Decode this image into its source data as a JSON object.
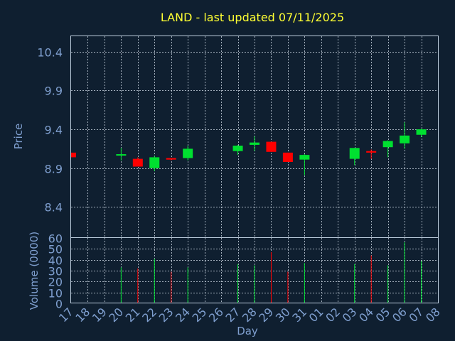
{
  "chart_data": {
    "type": "candlestick",
    "title": "LAND - last updated 07/11/2025",
    "xlabel": "Day",
    "price_panel": {
      "ylabel": "Price",
      "ylim": [
        8.0,
        10.6
      ],
      "yticks": [
        "8.4",
        "8.9",
        "9.4",
        "9.9",
        "10.4"
      ]
    },
    "volume_panel": {
      "ylabel": "Volume (0000)",
      "ylim": [
        0,
        60
      ],
      "yticks": [
        "0",
        "10",
        "20",
        "30",
        "40",
        "50",
        "60"
      ]
    },
    "x_tick_labels": [
      "17",
      "18",
      "19",
      "20",
      "21",
      "22",
      "23",
      "24",
      "25",
      "26",
      "27",
      "28",
      "29",
      "30",
      "31",
      "01",
      "02",
      "03",
      "04",
      "05",
      "06",
      "07",
      "08"
    ],
    "grid": true,
    "colors": {
      "background": "#0f1f30",
      "title": "#ffff33",
      "axis": "#7f9fcf",
      "up": "#00e030",
      "down": "#ff0000",
      "grid": "#c8d4e0"
    },
    "candles": [
      {
        "day": "17",
        "open": 9.1,
        "high": 9.1,
        "low": 9.04,
        "close": 9.04
      },
      {
        "day": "20",
        "open": 9.08,
        "high": 9.16,
        "low": 9.0,
        "close": 9.08,
        "volume": 33
      },
      {
        "day": "21",
        "open": 9.02,
        "high": 9.04,
        "low": 8.92,
        "close": 8.92,
        "volume": 32
      },
      {
        "day": "22",
        "open": 8.9,
        "high": 9.06,
        "low": 8.86,
        "close": 9.04,
        "volume": 41
      },
      {
        "day": "23",
        "open": 9.03,
        "high": 9.03,
        "low": 9.0,
        "close": 9.01,
        "volume": 29
      },
      {
        "day": "24",
        "open": 9.03,
        "high": 9.19,
        "low": 9.0,
        "close": 9.15,
        "volume": 33
      },
      {
        "day": "27",
        "open": 9.12,
        "high": 9.2,
        "low": 9.07,
        "close": 9.19,
        "volume": 36
      },
      {
        "day": "28",
        "open": 9.2,
        "high": 9.31,
        "low": 9.12,
        "close": 9.23,
        "volume": 35
      },
      {
        "day": "29",
        "open": 9.24,
        "high": 9.24,
        "low": 9.11,
        "close": 9.11,
        "volume": 47
      },
      {
        "day": "30",
        "open": 9.1,
        "high": 9.1,
        "low": 8.98,
        "close": 8.98,
        "volume": 29
      },
      {
        "day": "31",
        "open": 9.01,
        "high": 9.08,
        "low": 8.81,
        "close": 9.07,
        "volume": 37
      },
      {
        "day": "03",
        "open": 9.02,
        "high": 9.16,
        "low": 8.94,
        "close": 9.16,
        "volume": 36
      },
      {
        "day": "04",
        "open": 9.12,
        "high": 9.14,
        "low": 9.02,
        "close": 9.1,
        "volume": 44
      },
      {
        "day": "05",
        "open": 9.17,
        "high": 9.26,
        "low": 9.04,
        "close": 9.25,
        "volume": 35
      },
      {
        "day": "06",
        "open": 9.22,
        "high": 9.49,
        "low": 9.15,
        "close": 9.32,
        "volume": 56
      },
      {
        "day": "07",
        "open": 9.33,
        "high": 9.41,
        "low": 9.3,
        "close": 9.4,
        "volume": 39
      }
    ]
  }
}
